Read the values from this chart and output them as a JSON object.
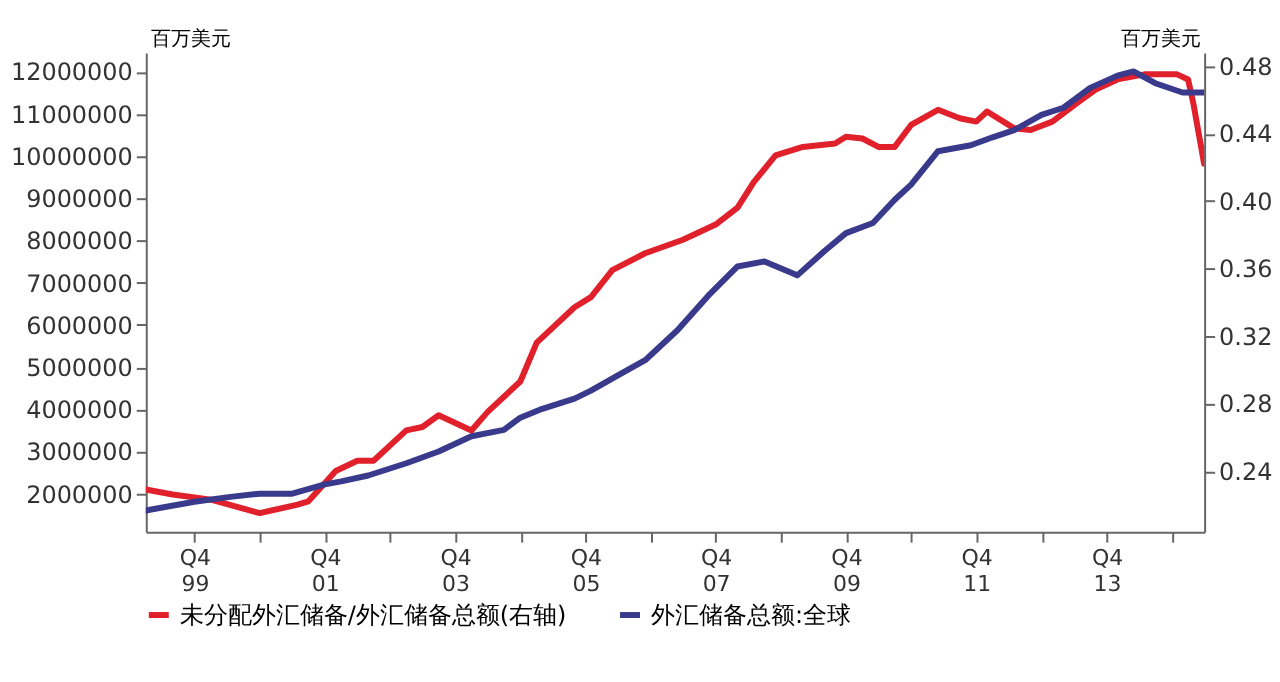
{
  "chart_data": {
    "type": "line",
    "ylabel": "百万美元",
    "y2label": "百万美元",
    "xlim": [
      "1999-01",
      "2015-04"
    ],
    "ylim": [
      1100000,
      12450000
    ],
    "y2lim": [
      0.204,
      0.488
    ],
    "xticks": [
      {
        "value": "1999-10",
        "label": "Q4\n99"
      },
      {
        "value": "2000-10",
        "label": null
      },
      {
        "value": "2001-10",
        "label": "Q4\n01"
      },
      {
        "value": "2002-10",
        "label": null
      },
      {
        "value": "2003-10",
        "label": "Q4\n03"
      },
      {
        "value": "2004-10",
        "label": null
      },
      {
        "value": "2005-10",
        "label": "Q4\n05"
      },
      {
        "value": "2006-10",
        "label": null
      },
      {
        "value": "2007-10",
        "label": "Q4\n07"
      },
      {
        "value": "2008-10",
        "label": null
      },
      {
        "value": "2009-10",
        "label": "Q4\n09"
      },
      {
        "value": "2010-10",
        "label": null
      },
      {
        "value": "2011-10",
        "label": "Q4\n11"
      },
      {
        "value": "2012-10",
        "label": null
      },
      {
        "value": "2013-10",
        "label": "Q4\n13"
      },
      {
        "value": "2014-10",
        "label": null
      }
    ],
    "yticks": [
      2000000,
      3000000,
      4000000,
      5000000,
      6000000,
      7000000,
      8000000,
      9000000,
      10000000,
      11000000,
      12000000
    ],
    "y2ticks": [
      0.24,
      0.28,
      0.32,
      0.36,
      {
        "value": 0.4,
        "label": "0.40"
      },
      0.44,
      0.48
    ],
    "legend": "bottom",
    "line_style": "solid",
    "grid": false,
    "marker": "none",
    "series": [
      {
        "name": "未分配外汇储备/外汇储备总额(右轴)",
        "color": "#e0202a",
        "axis": "y2",
        "x": [
          "1999-01",
          "1999-06",
          "2000-01",
          "2000-10",
          "2001-05",
          "2001-07",
          "2001-12",
          "2002-04",
          "2002-07",
          "2003-01",
          "2003-04",
          "2003-07",
          "2004-01",
          "2004-04",
          "2004-10",
          "2005-01",
          "2005-08",
          "2005-11",
          "2006-03",
          "2006-09",
          "2007-04",
          "2007-10",
          "2008-02",
          "2008-05",
          "2008-09",
          "2009-02",
          "2009-08",
          "2009-10",
          "2010-01",
          "2010-04",
          "2010-07",
          "2010-10",
          "2011-03",
          "2011-07",
          "2011-10",
          "2011-12",
          "2012-05",
          "2012-08",
          "2012-12",
          "2013-05",
          "2013-08",
          "2013-12",
          "2014-05",
          "2014-11",
          "2015-01",
          "2015-02",
          "2015-04"
        ],
        "values": [
          0.229,
          0.226,
          0.223,
          0.215,
          0.22,
          0.222,
          0.24,
          0.246,
          0.246,
          0.264,
          0.266,
          0.273,
          0.264,
          0.275,
          0.293,
          0.316,
          0.337,
          0.343,
          0.359,
          0.369,
          0.377,
          0.386,
          0.396,
          0.411,
          0.427,
          0.432,
          0.434,
          0.438,
          0.437,
          0.432,
          0.432,
          0.445,
          0.454,
          0.449,
          0.447,
          0.453,
          0.443,
          0.442,
          0.447,
          0.459,
          0.466,
          0.472,
          0.475,
          0.475,
          0.472,
          0.457,
          0.422
        ]
      },
      {
        "name": "外汇储备总额:全球",
        "color": "#3a3a8c",
        "x": [
          "1999-01",
          "1999-10",
          "2000-05",
          "2000-10",
          "2001-04",
          "2001-10",
          "2002-01",
          "2002-06",
          "2003-01",
          "2003-07",
          "2004-01",
          "2004-07",
          "2004-10",
          "2005-02",
          "2005-08",
          "2005-11",
          "2006-04",
          "2006-09",
          "2007-03",
          "2007-09",
          "2008-02",
          "2008-07",
          "2009-01",
          "2009-06",
          "2009-10",
          "2010-03",
          "2010-07",
          "2010-10",
          "2011-03",
          "2011-09",
          "2012-01",
          "2012-05",
          "2012-10",
          "2013-02",
          "2013-07",
          "2013-12",
          "2014-03",
          "2014-07",
          "2014-12",
          "2015-04"
        ],
        "values": [
          1600000,
          1810000,
          1930000,
          2000000,
          2000000,
          2220000,
          2290000,
          2430000,
          2720000,
          3000000,
          3360000,
          3510000,
          3800000,
          4010000,
          4250000,
          4440000,
          4800000,
          5160000,
          5870000,
          6740000,
          7380000,
          7500000,
          7170000,
          7740000,
          8170000,
          8410000,
          8960000,
          9320000,
          10110000,
          10250000,
          10440000,
          10610000,
          10970000,
          11140000,
          11610000,
          11900000,
          12000000,
          11720000,
          11500000,
          11500000
        ]
      }
    ]
  }
}
